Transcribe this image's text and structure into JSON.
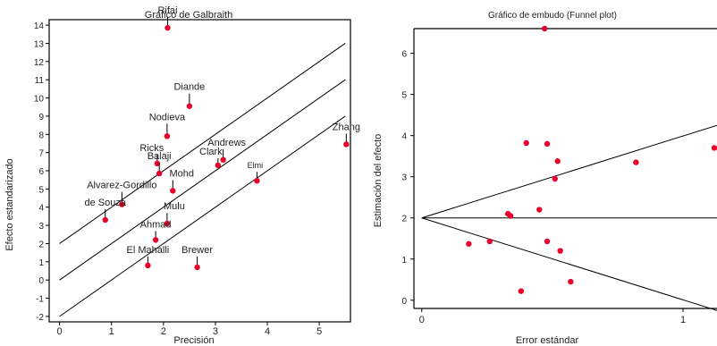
{
  "chart_data": [
    {
      "type": "scatter",
      "title": "Gráfico de Galbraith",
      "xlabel": "Precisión",
      "ylabel": "Efecto estandarizado",
      "xlim": [
        -0.2,
        5.6
      ],
      "ylim": [
        -2.3,
        14.3
      ],
      "xticks": [
        0,
        1,
        2,
        3,
        4,
        5
      ],
      "yticks": [
        -2,
        -1,
        0,
        1,
        2,
        3,
        4,
        5,
        6,
        7,
        8,
        9,
        10,
        11,
        12,
        13,
        14
      ],
      "marker_color": "#e8002a",
      "reference_lines": [
        {
          "intercept": 2,
          "slope": 2.0
        },
        {
          "intercept": 0,
          "slope": 2.0
        },
        {
          "intercept": -2,
          "slope": 2.0
        }
      ],
      "points": [
        {
          "label": "Rifai",
          "x": 2.08,
          "y": 13.85
        },
        {
          "label": "Diande",
          "x": 2.5,
          "y": 9.55
        },
        {
          "label": "Nodieva",
          "x": 2.07,
          "y": 7.9
        },
        {
          "label": "Ricks",
          "x": 1.88,
          "y": 6.4
        },
        {
          "label": "Balaji",
          "x": 1.92,
          "y": 5.85
        },
        {
          "label": "Mohd",
          "x": 2.18,
          "y": 4.9
        },
        {
          "label": "Andrews",
          "x": 3.15,
          "y": 6.6
        },
        {
          "label": "Clark",
          "x": 3.05,
          "y": 6.3
        },
        {
          "label": "Elmi",
          "x": 3.8,
          "y": 5.45
        },
        {
          "label": "Zhang",
          "x": 5.52,
          "y": 7.45
        },
        {
          "label": "Alvarez-Gordillo",
          "x": 1.2,
          "y": 4.15
        },
        {
          "label": "de Souza",
          "x": 0.88,
          "y": 3.3
        },
        {
          "label": "Mulu",
          "x": 2.07,
          "y": 3.1
        },
        {
          "label": "Ahmad",
          "x": 1.85,
          "y": 2.2
        },
        {
          "label": "El Mahalli",
          "x": 1.7,
          "y": 0.8
        },
        {
          "label": "Brewer",
          "x": 2.65,
          "y": 0.7
        }
      ]
    },
    {
      "type": "scatter",
      "title": "Gráfico de embudo (Funnel plot)",
      "xlabel": "Error estándar",
      "ylabel": "Estimación del efecto",
      "xlim": [
        -0.03,
        1.13
      ],
      "ylim": [
        -0.2,
        6.6
      ],
      "xticks": [
        0,
        1
      ],
      "yticks": [
        0,
        1,
        2,
        3,
        4,
        5,
        6
      ],
      "marker_color": "#e8002a",
      "reference_lines": [
        {
          "type": "horizontal",
          "y": 2.0
        },
        {
          "from": [
            0,
            2.0
          ],
          "to": [
            1.13,
            4.25
          ]
        },
        {
          "from": [
            0,
            2.0
          ],
          "to": [
            1.13,
            -0.25
          ]
        }
      ],
      "points": [
        {
          "x": 0.47,
          "y": 6.6
        },
        {
          "x": 0.4,
          "y": 3.82
        },
        {
          "x": 0.48,
          "y": 3.8
        },
        {
          "x": 0.52,
          "y": 3.38
        },
        {
          "x": 0.51,
          "y": 2.95
        },
        {
          "x": 0.82,
          "y": 3.35
        },
        {
          "x": 1.12,
          "y": 3.7
        },
        {
          "x": 0.45,
          "y": 2.2
        },
        {
          "x": 0.33,
          "y": 2.1
        },
        {
          "x": 0.34,
          "y": 2.05
        },
        {
          "x": 0.18,
          "y": 1.37
        },
        {
          "x": 0.26,
          "y": 1.43
        },
        {
          "x": 0.48,
          "y": 1.43
        },
        {
          "x": 0.53,
          "y": 1.2
        },
        {
          "x": 0.57,
          "y": 0.45
        },
        {
          "x": 0.38,
          "y": 0.22
        }
      ]
    }
  ]
}
